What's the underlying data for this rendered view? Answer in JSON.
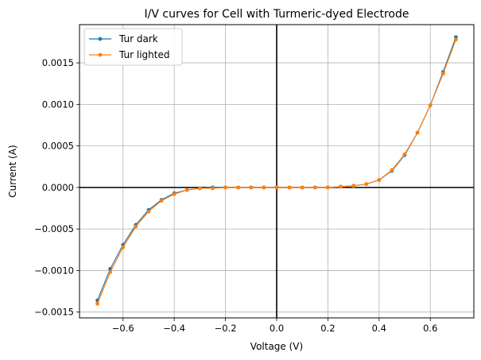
{
  "chart_data": {
    "type": "line",
    "title": "I/V curves for Cell with Turmeric-dyed Electrode",
    "xlabel": "Voltage (V)",
    "ylabel": "Current (A)",
    "xlim": [
      -0.77,
      0.77
    ],
    "ylim": [
      -0.00157,
      0.00196
    ],
    "xticks": [
      -0.6,
      -0.4,
      -0.2,
      0.0,
      0.2,
      0.4,
      0.6
    ],
    "xtick_labels": [
      "−0.6",
      "−0.4",
      "−0.2",
      "0.0",
      "0.2",
      "0.4",
      "0.6"
    ],
    "yticks": [
      -0.0015,
      -0.001,
      -0.0005,
      0.0,
      0.0005,
      0.001,
      0.0015
    ],
    "ytick_labels": [
      "−0.0015",
      "−0.0010",
      "−0.0005",
      "0.0000",
      "0.0005",
      "0.0010",
      "0.0015"
    ],
    "grid": true,
    "zero_lines": true,
    "legend_position": "top-left",
    "x": [
      -0.7,
      -0.65,
      -0.6,
      -0.55,
      -0.5,
      -0.45,
      -0.4,
      -0.35,
      -0.3,
      -0.25,
      -0.2,
      -0.15,
      -0.1,
      -0.05,
      0.0,
      0.05,
      0.1,
      0.15,
      0.2,
      0.25,
      0.3,
      0.35,
      0.4,
      0.45,
      0.5,
      0.55,
      0.6,
      0.65,
      0.7
    ],
    "series": [
      {
        "name": "Tur dark",
        "color": "#1f77b4",
        "values": [
          -0.00136,
          -0.00098,
          -0.00069,
          -0.00045,
          -0.00027,
          -0.00015,
          -7e-05,
          -3e-05,
          -1e-05,
          0.0,
          0.0,
          0.0,
          0.0,
          0.0,
          0.0,
          0.0,
          0.0,
          0.0,
          0.0,
          1e-05,
          2e-05,
          4e-05,
          9e-05,
          0.0002,
          0.00039,
          0.00066,
          0.00099,
          0.00139,
          0.00181
        ]
      },
      {
        "name": "Tur lighted",
        "color": "#ff7f0e",
        "values": [
          -0.0014,
          -0.00102,
          -0.00072,
          -0.00047,
          -0.00029,
          -0.00016,
          -8e-05,
          -3e-05,
          -1e-05,
          -1e-05,
          0.0,
          0.0,
          0.0,
          0.0,
          0.0,
          0.0,
          0.0,
          0.0,
          0.0,
          1e-05,
          2e-05,
          4e-05,
          9e-05,
          0.00021,
          0.0004,
          0.00066,
          0.00099,
          0.00137,
          0.00178
        ]
      }
    ]
  }
}
